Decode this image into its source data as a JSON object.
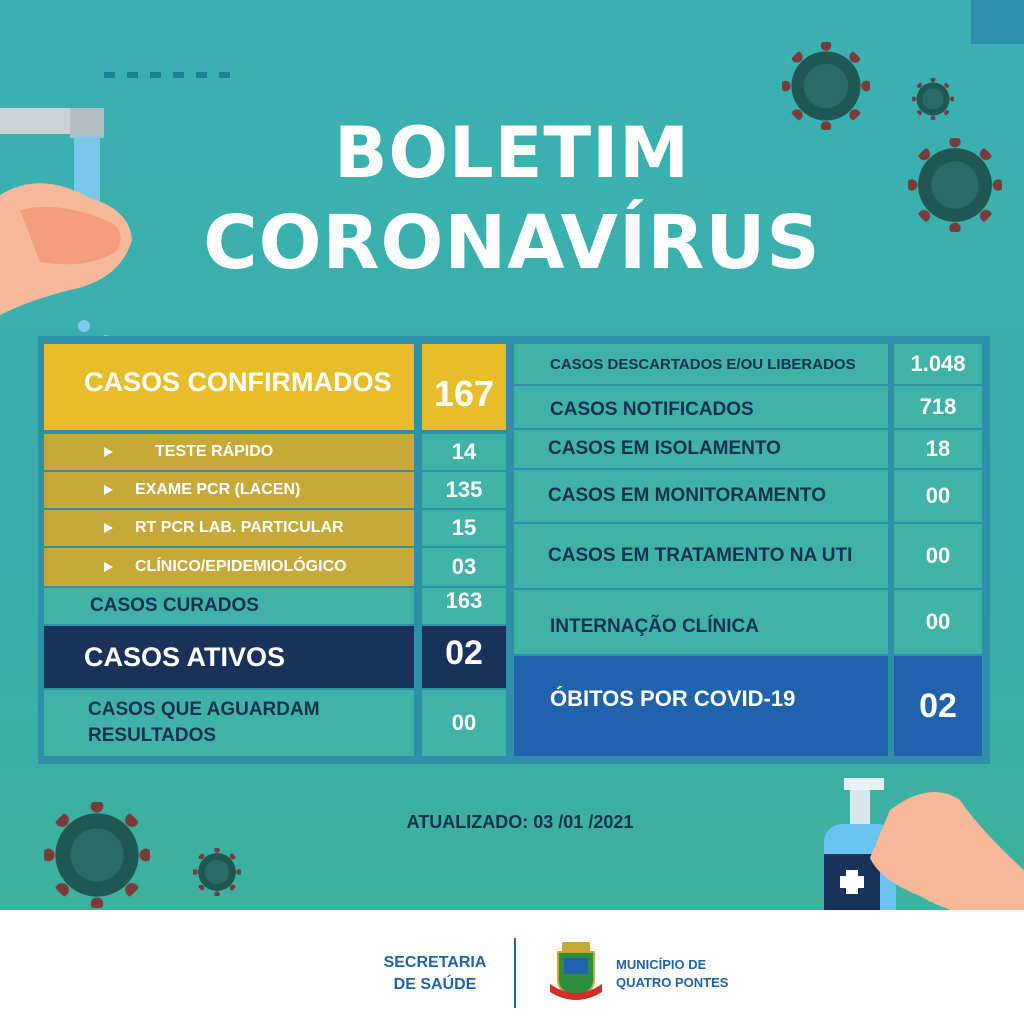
{
  "title": {
    "line1": "BOLETIM",
    "line2": "CORONAVÍRUS"
  },
  "left_table": {
    "confirmed": {
      "label": "CASOS CONFIRMADOS",
      "value": "167"
    },
    "sub": [
      {
        "label": "TESTE RÁPIDO",
        "value": "14"
      },
      {
        "label": "EXAME PCR (LACEN)",
        "value": "135"
      },
      {
        "label": "RT PCR LAB. PARTICULAR",
        "value": "15"
      },
      {
        "label": "CLÍNICO/EPIDEMIOLÓGICO",
        "value": "03"
      }
    ],
    "cured": {
      "label": "CASOS CURADOS",
      "value": "163"
    },
    "active": {
      "label": "CASOS ATIVOS",
      "value": "02"
    },
    "awaiting": {
      "label_line1": "CASOS QUE AGUARDAM",
      "label_line2": "RESULTADOS",
      "value": "00"
    }
  },
  "right_table": {
    "rows": [
      {
        "label": "CASOS DESCARTADOS E/OU LIBERADOS",
        "value": "1.048"
      },
      {
        "label": "CASOS NOTIFICADOS",
        "value": "718"
      },
      {
        "label": "CASOS EM ISOLAMENTO",
        "value": "18"
      },
      {
        "label": "CASOS EM MONITORAMENTO",
        "value": "00"
      },
      {
        "label": "CASOS EM TRATAMENTO NA UTI",
        "value": "00"
      },
      {
        "label": "INTERNAÇÃO CLÍNICA",
        "value": "00"
      }
    ],
    "deaths": {
      "label": "ÓBITOS POR COVID-19",
      "value": "02"
    }
  },
  "updated": "ATUALIZADO: 03 /01 /2021",
  "footer": {
    "left_line1": "SECRETARIA",
    "left_line2": "DE SAÚDE",
    "right_line1": "MUNICÍPIO DE",
    "right_line2": "QUATRO PONTES"
  },
  "colors": {
    "background": "#3cb1b2",
    "yellow": "#e8bd2b",
    "navy": "#18325a",
    "blue": "#1f63ad"
  }
}
